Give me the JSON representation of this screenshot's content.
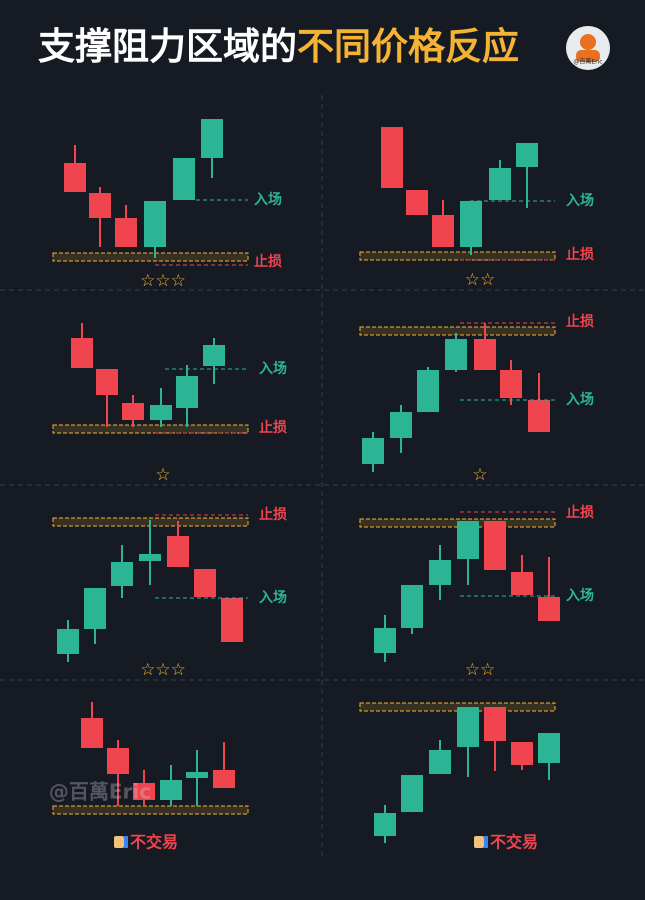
{
  "header": {
    "title_white": "支撑阻力区域的",
    "title_gold": "不同价格反应",
    "avatar_handle": "@百萬Eric"
  },
  "panels": [
    {
      "entry": "入场",
      "stop": "止损",
      "rating": "☆☆☆"
    },
    {
      "entry": "入场",
      "stop": "止损",
      "rating": "☆☆"
    },
    {
      "entry": "入场",
      "stop": "止损",
      "rating": "☆"
    },
    {
      "entry": "入场",
      "stop": "止损",
      "rating": "☆"
    },
    {
      "entry": "入场",
      "stop": "止损",
      "rating": "☆☆☆"
    },
    {
      "entry": "入场",
      "stop": "止损",
      "rating": "☆☆"
    },
    {
      "verdict": "不交易"
    },
    {
      "verdict": "不交易"
    }
  ],
  "watermark": "@百萬Eric"
}
